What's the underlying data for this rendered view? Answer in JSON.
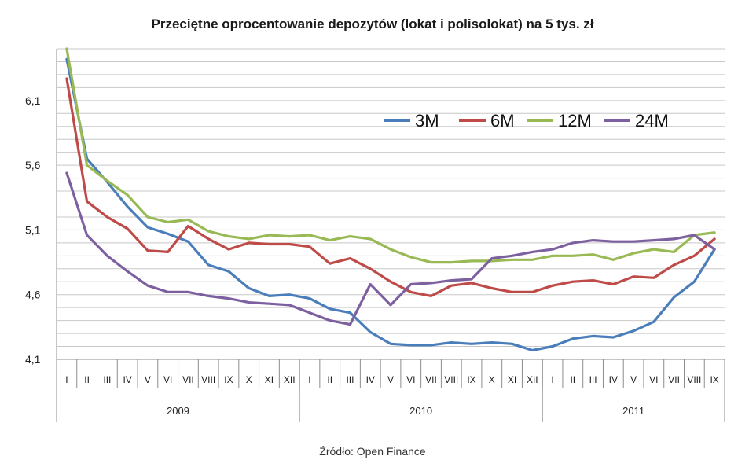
{
  "chart_data": {
    "type": "line",
    "title": "Przeciętne oprocentowanie depozytów (lokat i polisolokat) na 5 tys. zł",
    "source": "Źródło: Open Finance",
    "x": [
      "I",
      "II",
      "III",
      "IV",
      "V",
      "VI",
      "VII",
      "VIII",
      "IX",
      "X",
      "XI",
      "XII",
      "I",
      "II",
      "III",
      "IV",
      "V",
      "VI",
      "VII",
      "VIII",
      "IX",
      "X",
      "XI",
      "XII",
      "I",
      "II",
      "III",
      "IV",
      "V",
      "VI",
      "VII",
      "VIII",
      "IX"
    ],
    "years": [
      {
        "label": "2009",
        "start": 0,
        "end": 11
      },
      {
        "label": "2010",
        "start": 12,
        "end": 23
      },
      {
        "label": "2011",
        "start": 24,
        "end": 32
      }
    ],
    "yticks": [
      {
        "value": 4.1,
        "label": "4,1"
      },
      {
        "value": 4.6,
        "label": "4,6"
      },
      {
        "value": 5.1,
        "label": "5,1"
      },
      {
        "value": 5.6,
        "label": "5,6"
      },
      {
        "value": 6.1,
        "label": "6,1"
      }
    ],
    "ylim": [
      4.1,
      6.5
    ],
    "minor_gridline_step": 0.1,
    "grid": true,
    "legend_position": "top-right",
    "series": [
      {
        "name": "3M",
        "color": "#4a7ebb",
        "values": [
          6.42,
          5.65,
          5.47,
          5.28,
          5.12,
          5.07,
          5.01,
          4.83,
          4.78,
          4.65,
          4.59,
          4.6,
          4.57,
          4.49,
          4.46,
          4.31,
          4.22,
          4.21,
          4.21,
          4.23,
          4.22,
          4.23,
          4.22,
          4.17,
          4.2,
          4.26,
          4.28,
          4.27,
          4.32,
          4.39,
          4.58,
          4.7,
          4.95
        ]
      },
      {
        "name": "6M",
        "color": "#be4b48",
        "values": [
          6.27,
          5.32,
          5.2,
          5.11,
          4.94,
          4.93,
          5.13,
          5.03,
          4.95,
          5.0,
          4.99,
          4.99,
          4.97,
          4.84,
          4.88,
          4.8,
          4.7,
          4.62,
          4.59,
          4.67,
          4.69,
          4.65,
          4.62,
          4.62,
          4.67,
          4.7,
          4.71,
          4.68,
          4.74,
          4.73,
          4.83,
          4.9,
          5.03
        ]
      },
      {
        "name": "12M",
        "color": "#98b954",
        "values": [
          6.5,
          5.6,
          5.48,
          5.37,
          5.2,
          5.16,
          5.18,
          5.09,
          5.05,
          5.03,
          5.06,
          5.05,
          5.06,
          5.02,
          5.05,
          5.03,
          4.95,
          4.89,
          4.85,
          4.85,
          4.86,
          4.86,
          4.87,
          4.87,
          4.9,
          4.9,
          4.91,
          4.87,
          4.92,
          4.95,
          4.93,
          5.06,
          5.08
        ]
      },
      {
        "name": "24M",
        "color": "#7d60a0",
        "values": [
          5.54,
          5.06,
          4.9,
          4.78,
          4.67,
          4.62,
          4.62,
          4.59,
          4.57,
          4.54,
          4.53,
          4.52,
          4.46,
          4.4,
          4.37,
          4.68,
          4.52,
          4.68,
          4.69,
          4.71,
          4.72,
          4.88,
          4.9,
          4.93,
          4.95,
          5.0,
          5.02,
          5.01,
          5.01,
          5.02,
          5.03,
          5.06,
          4.95
        ]
      }
    ]
  }
}
